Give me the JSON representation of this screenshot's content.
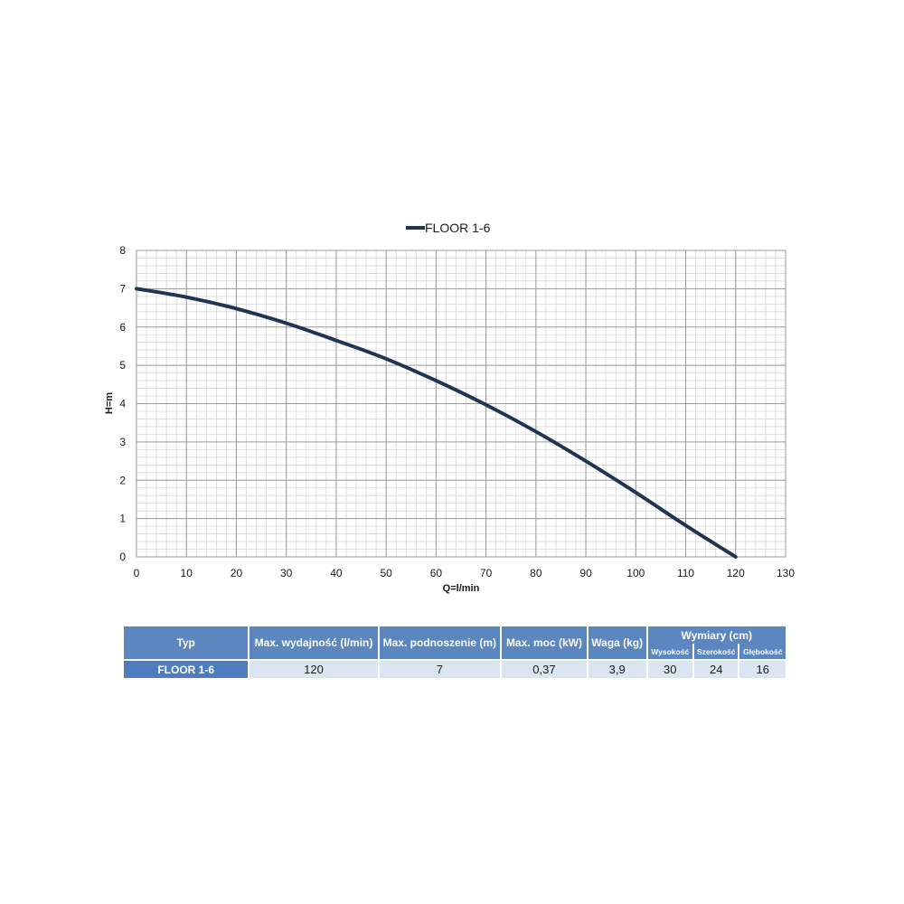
{
  "chart_data": {
    "type": "line",
    "legend": {
      "position": "top",
      "entries": [
        "FLOOR 1-6"
      ]
    },
    "xlabel": "Q=l/min",
    "ylabel": "H=m",
    "xlim": [
      0,
      130
    ],
    "ylim": [
      0,
      8
    ],
    "xticks": [
      0,
      10,
      20,
      30,
      40,
      50,
      60,
      70,
      80,
      90,
      100,
      110,
      120,
      130
    ],
    "yticks": [
      0,
      1,
      2,
      3,
      4,
      5,
      6,
      7,
      8
    ],
    "grid": true,
    "series": [
      {
        "name": "FLOOR 1-6",
        "color": "#1f3552",
        "x": [
          0,
          10,
          20,
          30,
          40,
          50,
          60,
          70,
          80,
          90,
          100,
          110,
          120
        ],
        "y": [
          7.0,
          6.78,
          6.48,
          6.1,
          5.65,
          5.17,
          4.6,
          3.97,
          3.27,
          2.5,
          1.68,
          0.82,
          0.0
        ]
      }
    ]
  },
  "table": {
    "headers": {
      "typ": "Typ",
      "wydajnosc": "Max. wydajność (l/min)",
      "podnoszenie": "Max. podnoszenie (m)",
      "moc": "Max. moc (kW)",
      "waga": "Waga (kg)",
      "wymiary": "Wymiary (cm)",
      "wysokosc": "Wysokość",
      "szerokosc": "Szerokość",
      "glebokosc": "Głębokość"
    },
    "row": {
      "typ": "FLOOR 1-6",
      "wydajnosc": "120",
      "podnoszenie": "7",
      "moc": "0,37",
      "waga": "3,9",
      "wysokosc": "30",
      "szerokosc": "24",
      "glebokosc": "16"
    }
  },
  "colors": {
    "header": "#5b86c0",
    "row_name": "#4f7cbc",
    "row_value": "#dbe5f1",
    "grid": "#c4c4c4"
  }
}
